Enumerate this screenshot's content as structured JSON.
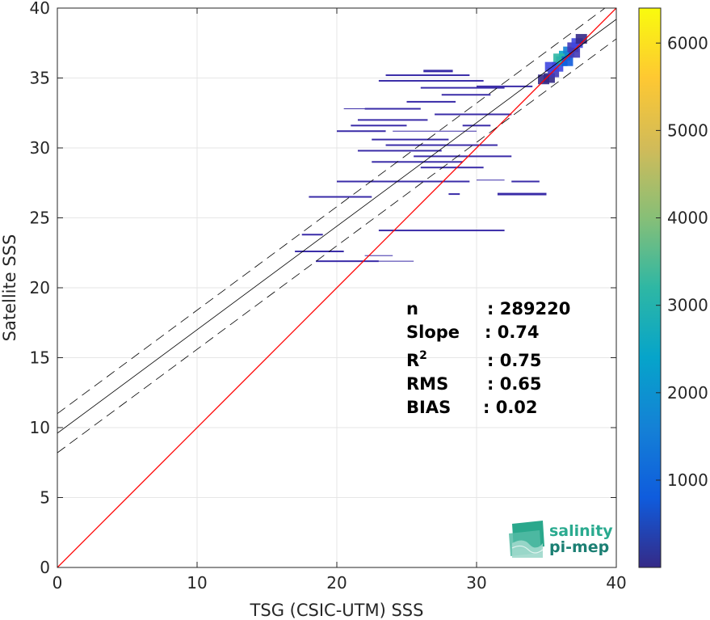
{
  "chart_data": {
    "type": "scatter",
    "subtype": "density-heatmap",
    "xlabel": "TSG (CSIC-UTM) SSS",
    "ylabel": "Satellite SSS",
    "xlim": [
      0,
      40
    ],
    "ylim": [
      0,
      40
    ],
    "x_ticks": [
      0,
      10,
      20,
      30,
      40
    ],
    "y_ticks": [
      0,
      5,
      10,
      15,
      20,
      25,
      30,
      35,
      40
    ],
    "grid": true,
    "identity_line": {
      "slope": 1,
      "intercept": 0,
      "color": "#ff0000"
    },
    "regression_line": {
      "slope": 0.74,
      "intercept": 9.6,
      "color": "#000000"
    },
    "confidence_band": {
      "offset": 1.4,
      "style": "dashed"
    },
    "stats": [
      {
        "label": "n",
        "value": ": 289220"
      },
      {
        "label": "Slope",
        "value": ": 0.74"
      },
      {
        "label": "R",
        "sup": "2",
        "value": ": 0.75"
      },
      {
        "label": "RMS",
        "value": ": 0.65"
      },
      {
        "label": "BIAS",
        "value": ": 0.02"
      }
    ],
    "colorbar": {
      "range": [
        1,
        6400
      ],
      "ticks": [
        1000,
        2000,
        3000,
        4000,
        5000,
        6000
      ],
      "colormap": "parula",
      "colors": [
        "#352a87",
        "#0f5cdd",
        "#1481d6",
        "#06a4ca",
        "#2eb7a4",
        "#87bf77",
        "#d1bb59",
        "#fec832",
        "#f9fb0e"
      ]
    },
    "density_segments": [
      {
        "x0": 26.2,
        "x1": 28.3,
        "y": 35.5,
        "w": 3
      },
      {
        "x0": 23.5,
        "x1": 29.5,
        "y": 35.2,
        "w": 2
      },
      {
        "x0": 23.0,
        "x1": 30.5,
        "y": 34.8,
        "w": 2
      },
      {
        "x0": 26.0,
        "x1": 32.0,
        "y": 34.3,
        "w": 2
      },
      {
        "x0": 30.0,
        "x1": 34.0,
        "y": 34.4,
        "w": 2
      },
      {
        "x0": 27.5,
        "x1": 31.0,
        "y": 33.8,
        "w": 2
      },
      {
        "x0": 25.0,
        "x1": 28.5,
        "y": 33.3,
        "w": 2
      },
      {
        "x0": 22.0,
        "x1": 26.0,
        "y": 32.8,
        "w": 2
      },
      {
        "x0": 20.5,
        "x1": 22.5,
        "y": 32.8,
        "w": 1
      },
      {
        "x0": 27.0,
        "x1": 32.5,
        "y": 32.4,
        "w": 2
      },
      {
        "x0": 21.5,
        "x1": 26.5,
        "y": 32.0,
        "w": 2
      },
      {
        "x0": 21.0,
        "x1": 25.0,
        "y": 31.6,
        "w": 2
      },
      {
        "x0": 29.0,
        "x1": 31.0,
        "y": 31.6,
        "w": 2
      },
      {
        "x0": 20.0,
        "x1": 23.5,
        "y": 31.2,
        "w": 2
      },
      {
        "x0": 24.0,
        "x1": 30.0,
        "y": 31.2,
        "w": 1
      },
      {
        "x0": 22.5,
        "x1": 28.0,
        "y": 30.6,
        "w": 2
      },
      {
        "x0": 23.5,
        "x1": 31.5,
        "y": 30.2,
        "w": 2
      },
      {
        "x0": 21.5,
        "x1": 27.5,
        "y": 29.8,
        "w": 2
      },
      {
        "x0": 25.5,
        "x1": 32.5,
        "y": 29.4,
        "w": 2
      },
      {
        "x0": 22.5,
        "x1": 29.0,
        "y": 29.0,
        "w": 2
      },
      {
        "x0": 26.0,
        "x1": 30.5,
        "y": 28.6,
        "w": 2
      },
      {
        "x0": 20.0,
        "x1": 29.5,
        "y": 27.6,
        "w": 2
      },
      {
        "x0": 30.0,
        "x1": 32.0,
        "y": 27.7,
        "w": 1
      },
      {
        "x0": 32.5,
        "x1": 34.5,
        "y": 27.6,
        "w": 2
      },
      {
        "x0": 18.0,
        "x1": 22.5,
        "y": 26.5,
        "w": 2
      },
      {
        "x0": 28.0,
        "x1": 28.8,
        "y": 26.7,
        "w": 2
      },
      {
        "x0": 31.5,
        "x1": 35.0,
        "y": 26.7,
        "w": 3
      },
      {
        "x0": 23.0,
        "x1": 32.0,
        "y": 24.1,
        "w": 2
      },
      {
        "x0": 17.5,
        "x1": 19.0,
        "y": 23.8,
        "w": 2
      },
      {
        "x0": 17.0,
        "x1": 20.5,
        "y": 22.6,
        "w": 2
      },
      {
        "x0": 22.0,
        "x1": 24.0,
        "y": 22.3,
        "w": 1
      },
      {
        "x0": 18.5,
        "x1": 23.0,
        "y": 21.9,
        "w": 2
      },
      {
        "x0": 23.0,
        "x1": 25.5,
        "y": 21.9,
        "w": 1
      }
    ],
    "density_cluster": [
      {
        "x": 35.2,
        "y": 35.0,
        "color": "#352a87"
      },
      {
        "x": 35.5,
        "y": 35.4,
        "color": "#4238b8"
      },
      {
        "x": 35.8,
        "y": 35.8,
        "color": "#3f47e0"
      },
      {
        "x": 36.1,
        "y": 36.2,
        "color": "#1481d6"
      },
      {
        "x": 36.3,
        "y": 36.6,
        "color": "#06a4ca"
      },
      {
        "x": 36.6,
        "y": 36.9,
        "color": "#1481d6"
      },
      {
        "x": 36.9,
        "y": 37.2,
        "color": "#4238b8"
      },
      {
        "x": 37.2,
        "y": 37.5,
        "color": "#3f47e0"
      },
      {
        "x": 37.5,
        "y": 37.8,
        "color": "#352a87"
      },
      {
        "x": 35.9,
        "y": 36.4,
        "color": "#2eb7a4"
      },
      {
        "x": 36.5,
        "y": 36.2,
        "color": "#0f5cdd"
      },
      {
        "x": 34.8,
        "y": 34.9,
        "color": "#352a87"
      },
      {
        "x": 37.0,
        "y": 36.8,
        "color": "#4238b8"
      },
      {
        "x": 35.3,
        "y": 35.8,
        "color": "#3f47e0"
      }
    ]
  },
  "logo": {
    "line1": "salinity",
    "line2": "pi-mep"
  }
}
